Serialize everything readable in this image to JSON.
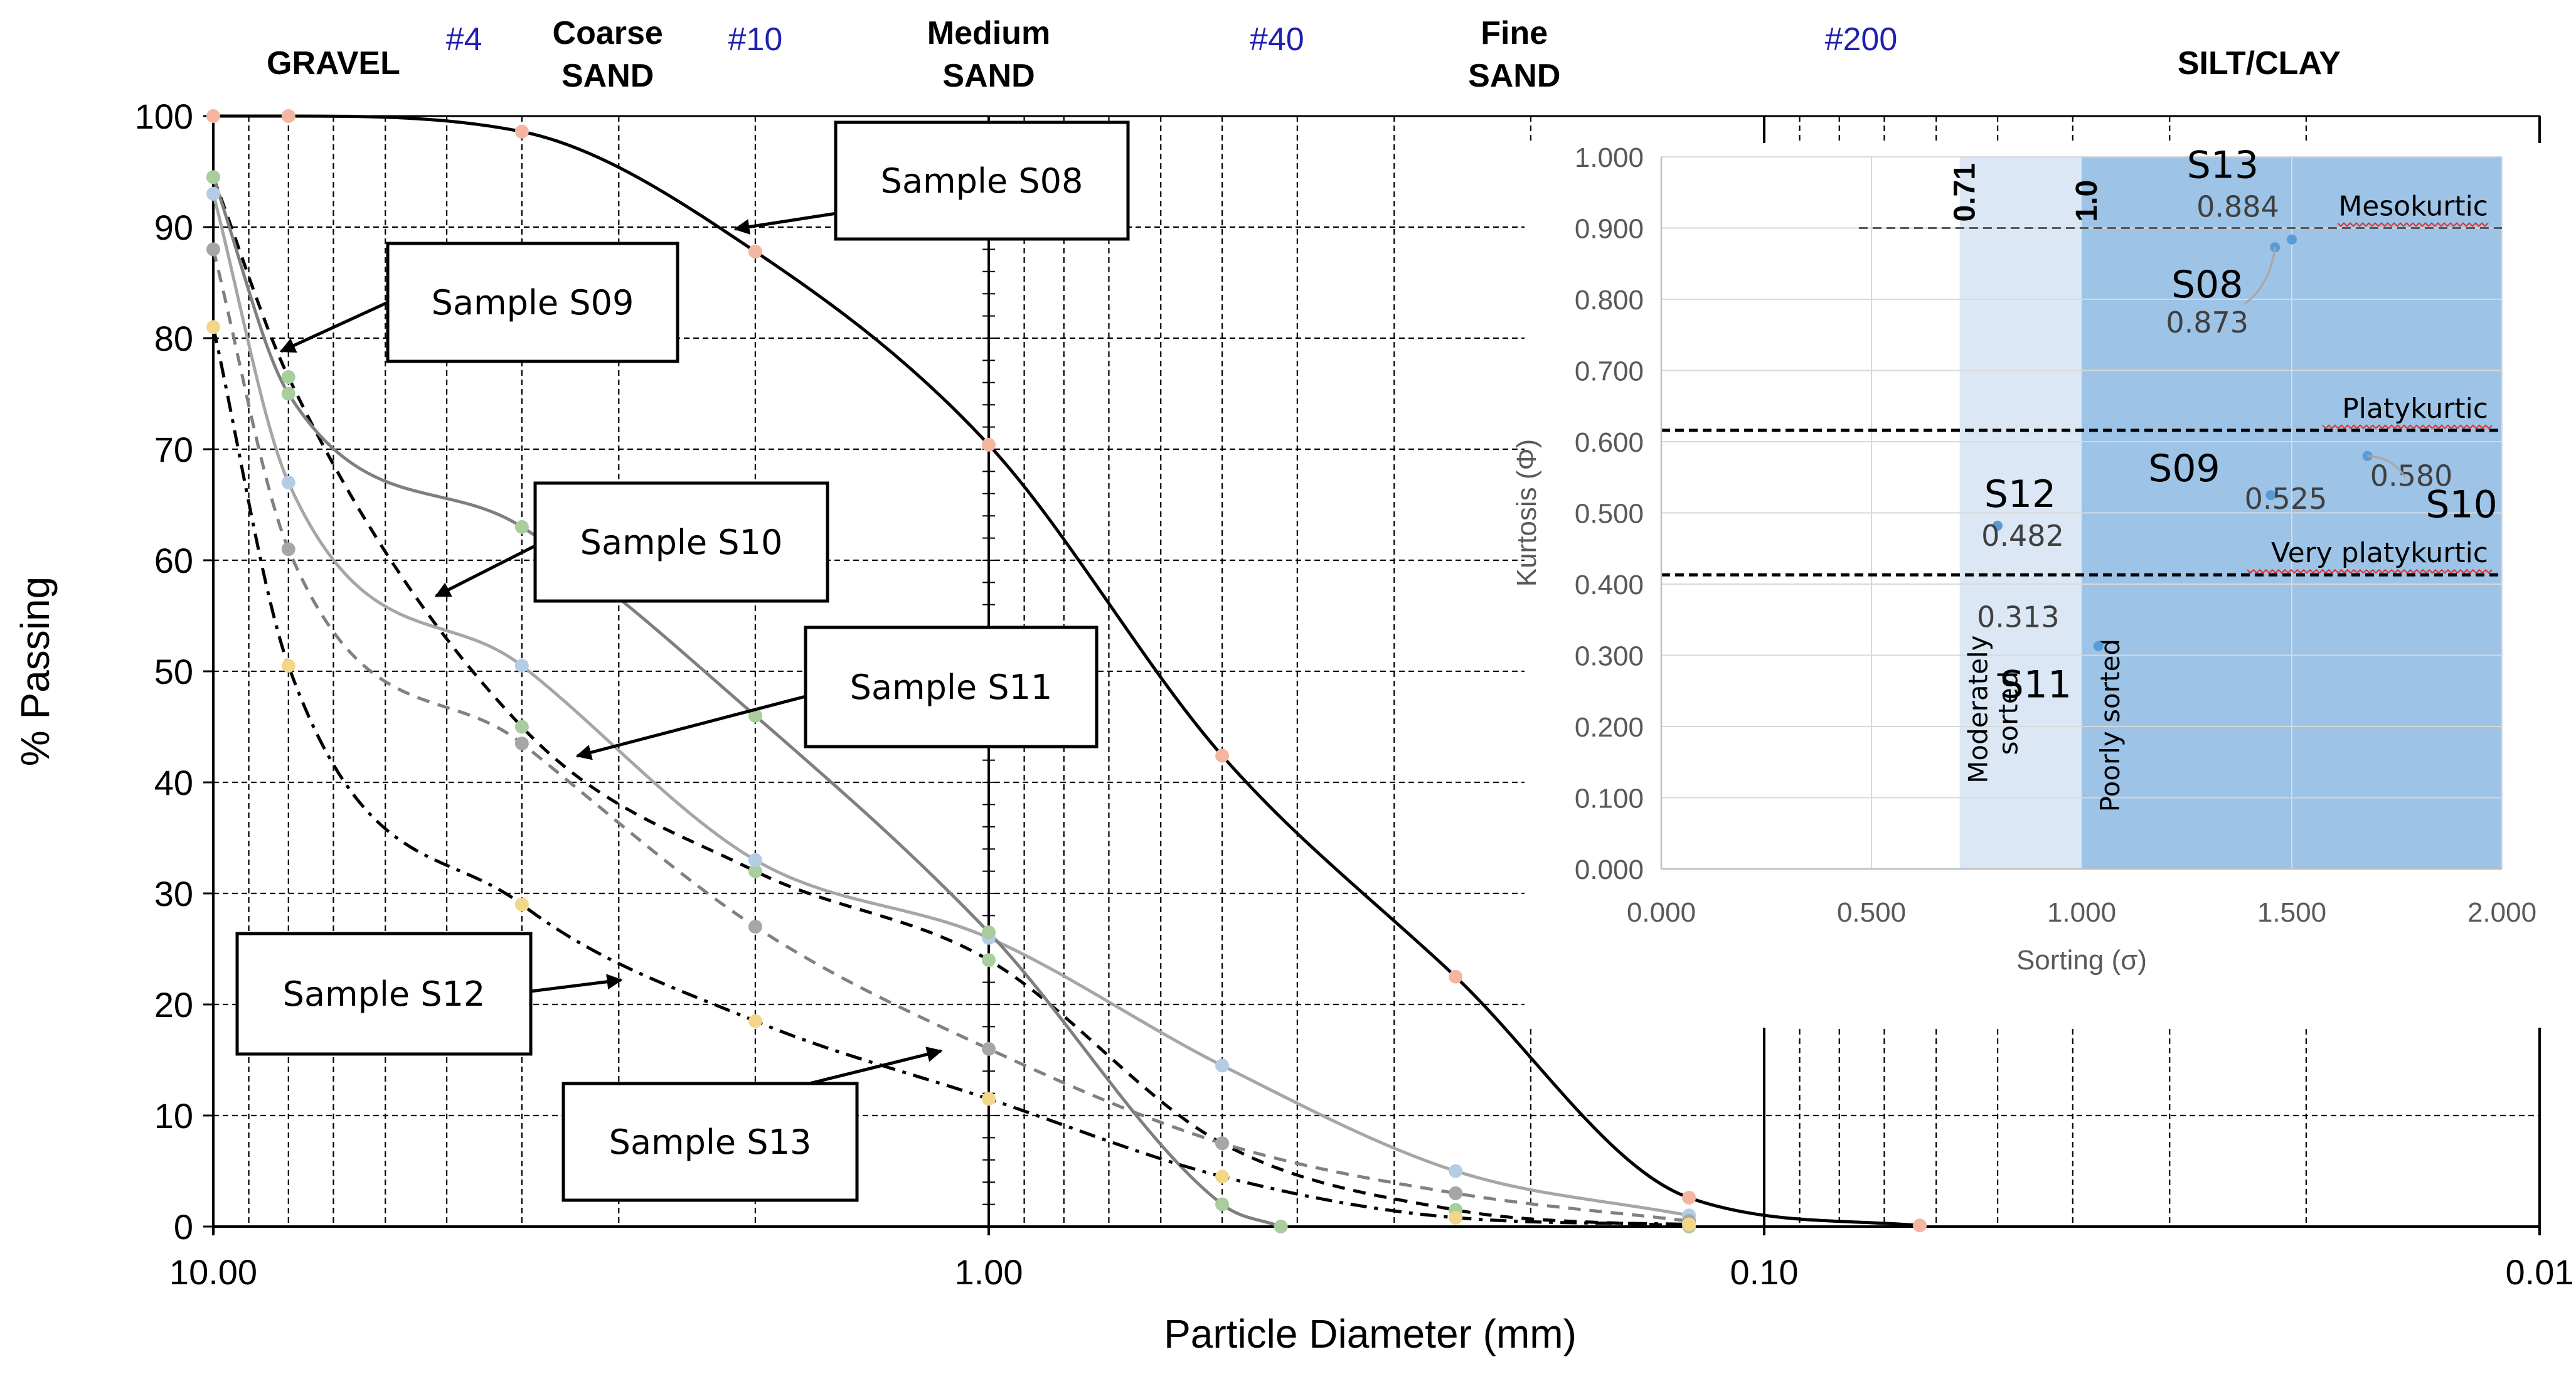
{
  "chart_data": [
    {
      "type": "line",
      "title": "",
      "xlabel": "Particle Diameter (mm)",
      "ylabel": "% Passing",
      "x_scale": "log",
      "x_reversed": true,
      "xlim": [
        10.0,
        0.01
      ],
      "ylim": [
        0,
        100
      ],
      "x_ticks": [
        10.0,
        1.0,
        0.1,
        0.01
      ],
      "x_tick_labels": [
        "10.00",
        "1.00",
        "0.10",
        "0.01"
      ],
      "y_ticks": [
        0,
        10,
        20,
        30,
        40,
        50,
        60,
        70,
        80,
        90,
        100
      ],
      "sieve_markers": [
        {
          "label": "#4",
          "x": 4.75
        },
        {
          "label": "#10",
          "x": 2.0
        },
        {
          "label": "#40",
          "x": 0.425
        },
        {
          "label": "#200",
          "x": 0.075
        }
      ],
      "soil_classes": [
        {
          "line1": "",
          "line2": "GRAVEL",
          "x": 7.0
        },
        {
          "line1": "Coarse",
          "line2": "SAND",
          "x": 3.1
        },
        {
          "line1": "Medium",
          "line2": "SAND",
          "x": 1.0
        },
        {
          "line1": "Fine",
          "line2": "SAND",
          "x": 0.21
        },
        {
          "line1": "",
          "line2": "SILT/CLAY",
          "x": 0.023
        }
      ],
      "series": [
        {
          "name": "Sample S08",
          "style": "solid",
          "color": "#000000",
          "marker_color": "#f4b6a0",
          "x": [
            10,
            8,
            4,
            2,
            1,
            0.5,
            0.25,
            0.125,
            0.063
          ],
          "y": [
            100,
            100,
            98.6,
            87.8,
            70.4,
            42.4,
            22.5,
            2.6,
            0.1
          ]
        },
        {
          "name": "Sample S09",
          "style": "dashed",
          "color": "#000000",
          "marker_color": "#a9cd9d",
          "x": [
            10,
            8,
            4,
            2,
            1,
            0.5,
            0.25,
            0.125
          ],
          "y": [
            94.5,
            76.5,
            45.0,
            32.0,
            24.0,
            7.5,
            1.5,
            0.0
          ]
        },
        {
          "name": "Sample S10",
          "style": "solid",
          "color": "#a6a6a6",
          "marker_color": "#b4cce6",
          "x": [
            10,
            8,
            4,
            2,
            1,
            0.5,
            0.25,
            0.125
          ],
          "y": [
            93.0,
            67.0,
            50.5,
            33.0,
            26.0,
            14.5,
            5.0,
            1.0
          ]
        },
        {
          "name": "Sample S11",
          "style": "dashed",
          "color": "#808080",
          "marker_color": "#a6a6a6",
          "x": [
            10,
            8,
            4,
            2,
            1,
            0.5,
            0.25,
            0.125
          ],
          "y": [
            88.0,
            61.0,
            43.5,
            27.0,
            16.0,
            7.5,
            3.0,
            0.5
          ]
        },
        {
          "name": "Sample S12",
          "style": "solid",
          "color": "#7f7f7f",
          "marker_color": "#a9cd9d",
          "x": [
            10,
            8,
            4,
            2,
            1,
            0.5,
            0.42
          ],
          "y": [
            94.5,
            75.0,
            63.0,
            46.0,
            26.5,
            2.0,
            0.0
          ]
        },
        {
          "name": "Sample S13",
          "style": "dashdot",
          "color": "#000000",
          "marker_color": "#f2d68a",
          "x": [
            10,
            8,
            4,
            2,
            1,
            0.5,
            0.25,
            0.125
          ],
          "y": [
            81.0,
            50.5,
            29.0,
            18.5,
            11.5,
            4.5,
            0.8,
            0.2
          ]
        }
      ],
      "callouts": [
        {
          "label": "Sample S08"
        },
        {
          "label": "Sample S09"
        },
        {
          "label": "Sample S10"
        },
        {
          "label": "Sample S11"
        },
        {
          "label": "Sample S12"
        },
        {
          "label": "Sample S13"
        }
      ]
    },
    {
      "type": "scatter",
      "title": "",
      "xlabel": "Sorting (σ)",
      "ylabel": "Kurtosis (Φ)",
      "xlim": [
        0,
        2
      ],
      "ylim": [
        0,
        1
      ],
      "x_ticks": [
        0,
        0.5,
        1.0,
        1.5,
        2.0
      ],
      "x_tick_labels": [
        "0.000",
        "0.500",
        "1.000",
        "1.500",
        "2.000"
      ],
      "y_ticks": [
        0,
        0.1,
        0.2,
        0.3,
        0.4,
        0.5,
        0.6,
        0.7,
        0.8,
        0.9,
        1.0
      ],
      "y_tick_labels": [
        "0.000",
        "0.100",
        "0.200",
        "0.300",
        "0.400",
        "0.500",
        "0.600",
        "0.700",
        "0.800",
        "0.900",
        "1.000"
      ],
      "color": "#5b9bd5",
      "points": [
        {
          "name": "S08",
          "x": 1.46,
          "y": 0.873
        },
        {
          "name": "S09",
          "x": 1.45,
          "y": 0.525
        },
        {
          "name": "S10",
          "x": 1.68,
          "y": 0.58
        },
        {
          "name": "S11",
          "x": 1.04,
          "y": 0.313
        },
        {
          "name": "S12",
          "x": 0.8,
          "y": 0.482
        },
        {
          "name": "S13",
          "x": 1.5,
          "y": 0.884
        }
      ],
      "sorting_zones": [
        {
          "label_line1": "Moderately",
          "label_line2": "sorted",
          "x_from": 0.71,
          "x_to": 1.0,
          "boundary_label": "0.71",
          "color": "#dbe7f4"
        },
        {
          "label_line1": "Poorly sorted",
          "label_line2": "",
          "x_from": 1.0,
          "x_to": 2.0,
          "boundary_label": "1.0",
          "color": "#9dc3e6"
        }
      ],
      "kurtosis_classes": [
        {
          "label": "Mesokurtic",
          "y": 0.9
        },
        {
          "label": "Platykurtic",
          "y": 0.616
        },
        {
          "label": "Very platykurtic",
          "y": 0.413
        }
      ]
    }
  ]
}
